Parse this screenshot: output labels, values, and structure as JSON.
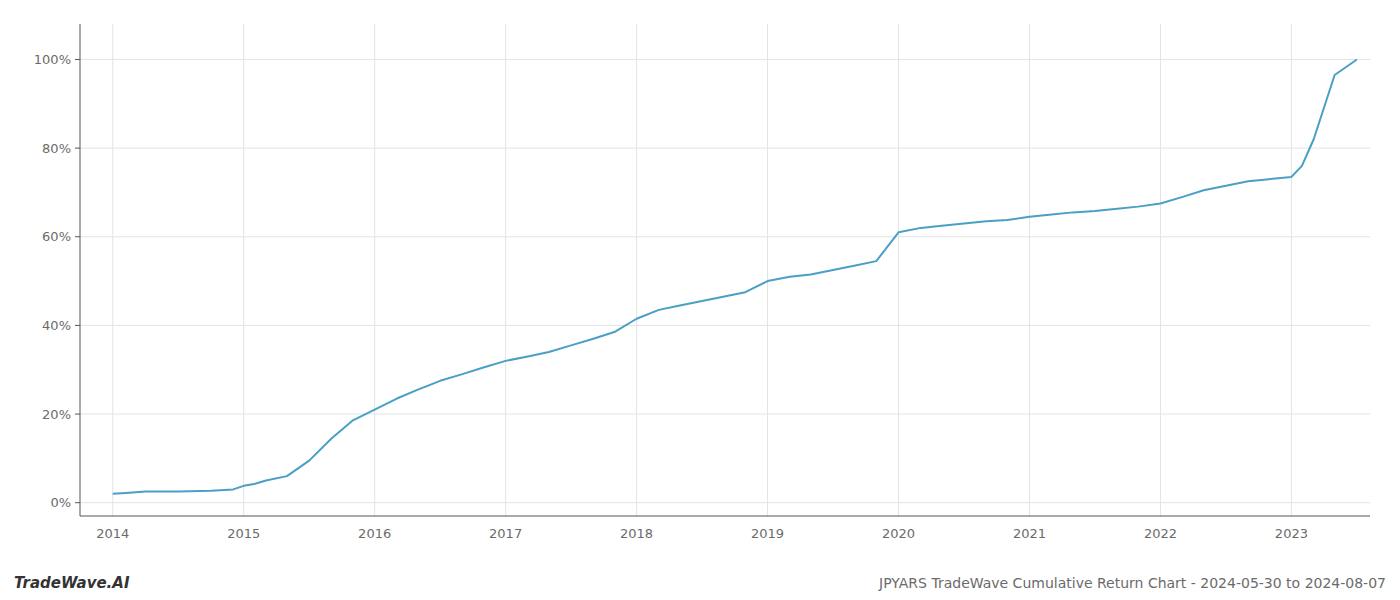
{
  "chart_data": {
    "type": "line",
    "title": "JPYARS TradeWave Cumulative Return Chart - 2024-05-30 to 2024-08-07",
    "annotations": [
      "TradeWave.AI"
    ],
    "color": "#4a9fc4",
    "x": [
      2014.0,
      2014.1,
      2014.25,
      2014.5,
      2014.75,
      2014.92,
      2015.0,
      2015.08,
      2015.17,
      2015.33,
      2015.5,
      2015.67,
      2015.83,
      2016.0,
      2016.17,
      2016.33,
      2016.5,
      2016.67,
      2016.83,
      2017.0,
      2017.17,
      2017.33,
      2017.5,
      2017.67,
      2017.83,
      2018.0,
      2018.17,
      2018.33,
      2018.5,
      2018.67,
      2018.83,
      2019.0,
      2019.17,
      2019.33,
      2019.5,
      2019.67,
      2019.83,
      2020.0,
      2020.17,
      2020.33,
      2020.5,
      2020.67,
      2020.83,
      2021.0,
      2021.17,
      2021.33,
      2021.5,
      2021.67,
      2021.83,
      2022.0,
      2022.17,
      2022.33,
      2022.5,
      2022.67,
      2022.83,
      2023.0,
      2023.08,
      2023.17,
      2023.33,
      2023.5
    ],
    "values": [
      0.02,
      0.022,
      0.025,
      0.025,
      0.027,
      0.03,
      0.038,
      0.042,
      0.05,
      0.06,
      0.095,
      0.145,
      0.185,
      0.21,
      0.235,
      0.255,
      0.275,
      0.29,
      0.305,
      0.32,
      0.33,
      0.34,
      0.355,
      0.37,
      0.385,
      0.415,
      0.435,
      0.445,
      0.455,
      0.465,
      0.475,
      0.5,
      0.51,
      0.515,
      0.525,
      0.535,
      0.545,
      0.61,
      0.62,
      0.625,
      0.63,
      0.635,
      0.638,
      0.645,
      0.65,
      0.655,
      0.658,
      0.663,
      0.668,
      0.675,
      0.69,
      0.705,
      0.715,
      0.725,
      0.73,
      0.735,
      0.76,
      0.82,
      0.965,
      1.0
    ],
    "xlim": [
      2013.75,
      2023.6
    ],
    "xticks": [
      2014,
      2015,
      2016,
      2017,
      2018,
      2019,
      2020,
      2021,
      2022,
      2023
    ],
    "ylim": [
      -0.03,
      1.08
    ],
    "yticks": [
      {
        "value": 0.0,
        "label": "0%"
      },
      {
        "value": 0.2,
        "label": "20%"
      },
      {
        "value": 0.4,
        "label": "40%"
      },
      {
        "value": 0.6,
        "label": "60%"
      },
      {
        "value": 0.8,
        "label": "80%"
      },
      {
        "value": 1.0,
        "label": "100%"
      }
    ],
    "grid": true
  }
}
